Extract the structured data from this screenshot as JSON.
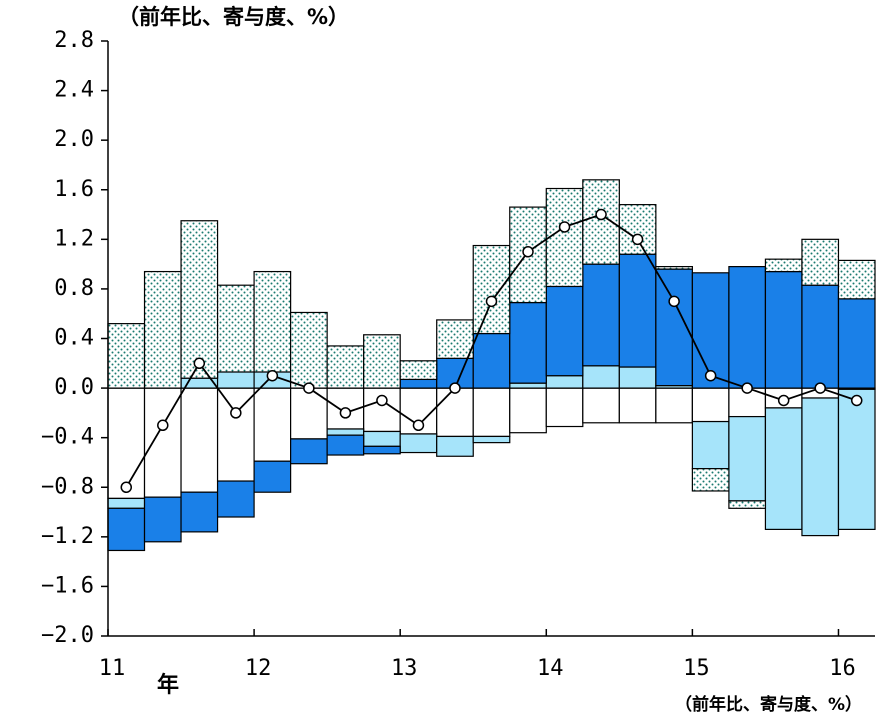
{
  "chart_data": {
    "type": "stacked-bar-line",
    "y_axis_label": "（前年比、寄与度、%）",
    "note": "（前年比、寄与度、%）",
    "x_unit": "年",
    "x": [
      11,
      11.25,
      11.5,
      11.75,
      12,
      12.25,
      12.5,
      12.75,
      13,
      13.25,
      13.5,
      13.75,
      14,
      14.25,
      14.5,
      14.75,
      15,
      15.25,
      15.5,
      15.75,
      16
    ],
    "xlim": [
      11,
      16.25
    ],
    "xticks": [
      11,
      12,
      13,
      14,
      15,
      16
    ],
    "ylim": [
      -2.0,
      2.8
    ],
    "yticks": [
      {
        "value": 2.8,
        "label": "2.8"
      },
      {
        "value": 2.4,
        "label": "2.4"
      },
      {
        "value": 2.0,
        "label": "2.0"
      },
      {
        "value": 1.6,
        "label": "1.6"
      },
      {
        "value": 1.2,
        "label": "1.2"
      },
      {
        "value": 0.8,
        "label": "0.8"
      },
      {
        "value": 0.4,
        "label": "0.4"
      },
      {
        "value": 0,
        "label": "0.0"
      },
      {
        "value": -0.4,
        "label": "−0.4"
      },
      {
        "value": -0.8,
        "label": "−0.8"
      },
      {
        "value": -1.2,
        "label": "−1.2"
      },
      {
        "value": -1.6,
        "label": "−1.6"
      },
      {
        "value": -2.0,
        "label": "−2.0"
      }
    ],
    "series": [
      {
        "type": "bar",
        "color": "#ffffff",
        "values": [
          -0.89,
          -0.88,
          -0.84,
          -0.75,
          -0.59,
          -0.41,
          -0.33,
          -0.35,
          -0.37,
          -0.39,
          -0.39,
          -0.36,
          -0.31,
          -0.28,
          -0.28,
          -0.28,
          -0.27,
          -0.23,
          -0.16,
          -0.08,
          -0.01
        ]
      },
      {
        "type": "bar",
        "color": "#a6e4fa",
        "values": [
          -0.08,
          0,
          0.08,
          0.13,
          0.13,
          0,
          -0.05,
          -0.12,
          -0.15,
          -0.16,
          -0.05,
          0.04,
          0.1,
          0.18,
          0.17,
          0.02,
          -0.38,
          -0.68,
          -0.98,
          -1.11,
          -1.13
        ]
      },
      {
        "type": "bar",
        "color": "#1a80e8",
        "values": [
          -0.34,
          -0.36,
          -0.32,
          -0.29,
          -0.25,
          -0.2,
          -0.16,
          -0.06,
          0.07,
          0.24,
          0.44,
          0.65,
          0.72,
          0.82,
          0.91,
          0.94,
          0.93,
          0.98,
          0.94,
          0.83,
          0.72
        ]
      },
      {
        "type": "bar",
        "color": "#ffffff",
        "pattern": "dots",
        "values": [
          0.52,
          0.94,
          1.27,
          0.7,
          0.81,
          0.61,
          0.34,
          0.43,
          0.15,
          0.31,
          0.71,
          0.77,
          0.79,
          0.68,
          0.4,
          0.02,
          -0.18,
          -0.06,
          0.1,
          0.37,
          0.31
        ]
      },
      {
        "type": "line",
        "color": "#000000",
        "values": [
          -0.8,
          -0.3,
          0.2,
          -0.2,
          0.1,
          0,
          -0.2,
          -0.1,
          -0.3,
          0,
          0.7,
          1.1,
          1.3,
          1.4,
          1.2,
          0.7,
          0.1,
          0,
          -0.1,
          0,
          -0.1
        ]
      }
    ]
  }
}
